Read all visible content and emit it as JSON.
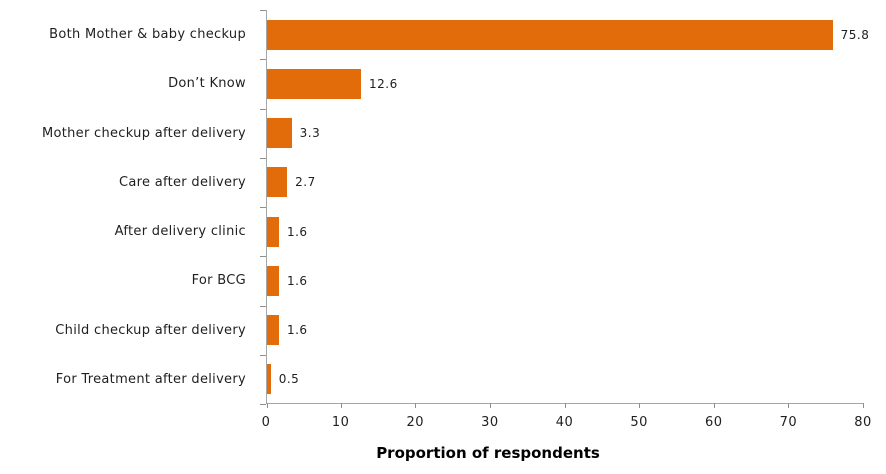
{
  "chart_data": {
    "type": "bar",
    "orientation": "horizontal",
    "title": "",
    "xlabel": "Proportion of respondents",
    "ylabel": "",
    "categories": [
      "Both Mother & baby checkup",
      "Don’t Know",
      "Mother checkup after delivery",
      "Care after delivery",
      "After delivery clinic",
      "For BCG",
      "Child checkup after delivery",
      "For Treatment after delivery"
    ],
    "values": [
      75.8,
      12.6,
      3.3,
      2.7,
      1.6,
      1.6,
      1.6,
      0.5
    ],
    "data_labels": [
      "75.8",
      "12.6",
      "3.3",
      "2.7",
      "1.6",
      "1.6",
      "1.6",
      "0.5"
    ],
    "xlim": [
      0,
      80
    ],
    "x_ticks": [
      0,
      10,
      20,
      30,
      40,
      50,
      60,
      70,
      80
    ],
    "grid": false,
    "legend_position": "none",
    "bar_color": "#E36C0A",
    "axis_color": "#A6A6A6",
    "text_color": "#1F1F1F"
  }
}
